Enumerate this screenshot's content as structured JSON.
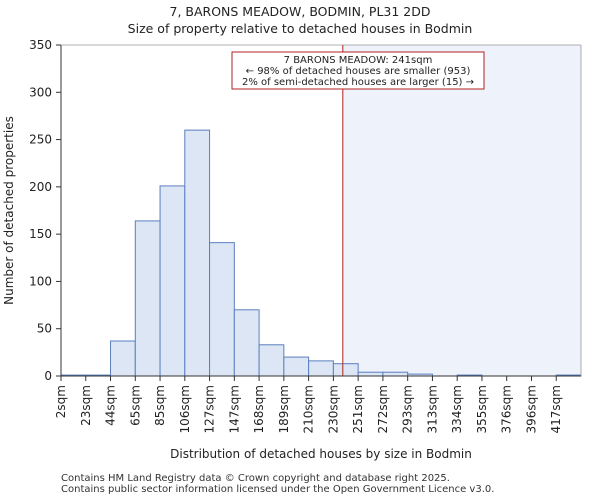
{
  "chart_data": {
    "type": "bar",
    "title": "7, BARONS MEADOW, BODMIN, PL31 2DD",
    "subtitle": "Size of property relative to detached houses in Bodmin",
    "xlabel": "Distribution of detached houses by size in Bodmin",
    "ylabel": "Number of detached properties",
    "ylim": [
      0,
      350
    ],
    "yticks": [
      0,
      50,
      100,
      150,
      200,
      250,
      300,
      350
    ],
    "categories": [
      "2sqm",
      "23sqm",
      "44sqm",
      "65sqm",
      "85sqm",
      "106sqm",
      "127sqm",
      "147sqm",
      "168sqm",
      "189sqm",
      "210sqm",
      "230sqm",
      "251sqm",
      "272sqm",
      "293sqm",
      "313sqm",
      "334sqm",
      "355sqm",
      "376sqm",
      "396sqm",
      "417sqm"
    ],
    "values": [
      1,
      1,
      37,
      164,
      201,
      260,
      141,
      70,
      33,
      20,
      16,
      13,
      4,
      4,
      2,
      0,
      1,
      0,
      0,
      0,
      1
    ],
    "marker_value_sqm": 241,
    "annotation": {
      "line1": "7 BARONS MEADOW: 241sqm",
      "line2": "← 98% of detached houses are smaller (953)",
      "line3": "2% of semi-detached houses are larger (15) →"
    },
    "colors": {
      "bar_fill": "#dce6f4",
      "bar_stroke": "#5b7fbf",
      "marker": "#b22222",
      "shade": "#eef2fa"
    }
  },
  "footer": {
    "line1": "Contains HM Land Registry data © Crown copyright and database right 2025.",
    "line2": "Contains public sector information licensed under the Open Government Licence v3.0."
  }
}
